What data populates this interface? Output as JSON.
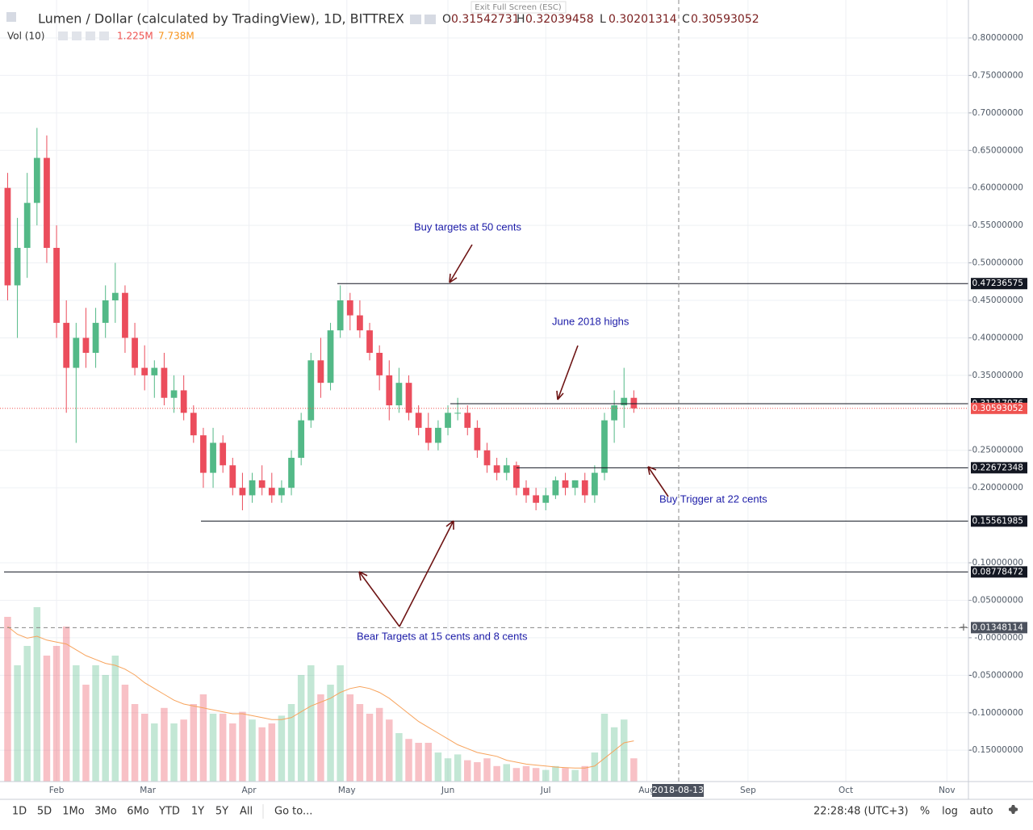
{
  "header": {
    "symbol": "Lumen / Dollar (calculated by TradingView), 1D, BITTREX",
    "ohlc": [
      {
        "label": "O",
        "value": 0.31542731
      },
      {
        "label": "H",
        "value": 0.32039458
      },
      {
        "label": "L",
        "value": 0.30201314
      },
      {
        "label": "C",
        "value": 0.30593052
      }
    ],
    "volume_label": "Vol (10)",
    "volume_values": [
      "1.225M",
      "7.738M"
    ],
    "exit_full_screen": "Exit Full Screen (ESC)"
  },
  "chart_data": {
    "type": "candlestick",
    "up_color": "#53b987",
    "down_color": "#eb4d5c",
    "open": [
      0.6,
      0.47,
      0.52,
      0.58,
      0.64,
      0.52,
      0.42,
      0.36,
      0.4,
      0.38,
      0.42,
      0.45,
      0.46,
      0.4,
      0.36,
      0.35,
      0.36,
      0.32,
      0.33,
      0.3,
      0.27,
      0.22,
      0.26,
      0.23,
      0.2,
      0.19,
      0.21,
      0.2,
      0.19,
      0.2,
      0.24,
      0.29,
      0.37,
      0.34,
      0.41,
      0.45,
      0.43,
      0.41,
      0.38,
      0.35,
      0.31,
      0.34,
      0.3,
      0.28,
      0.26,
      0.28,
      0.3,
      0.3,
      0.28,
      0.25,
      0.23,
      0.22,
      0.23,
      0.2,
      0.19,
      0.18,
      0.19,
      0.21,
      0.2,
      0.21,
      0.19,
      0.22,
      0.29,
      0.31,
      0.32
    ],
    "high": [
      0.62,
      0.56,
      0.62,
      0.68,
      0.67,
      0.55,
      0.45,
      0.42,
      0.44,
      0.44,
      0.47,
      0.5,
      0.47,
      0.42,
      0.39,
      0.37,
      0.38,
      0.35,
      0.35,
      0.31,
      0.28,
      0.28,
      0.27,
      0.24,
      0.22,
      0.22,
      0.23,
      0.22,
      0.21,
      0.25,
      0.3,
      0.38,
      0.4,
      0.42,
      0.47,
      0.46,
      0.45,
      0.42,
      0.39,
      0.37,
      0.36,
      0.35,
      0.31,
      0.3,
      0.29,
      0.31,
      0.32,
      0.31,
      0.29,
      0.26,
      0.24,
      0.24,
      0.235,
      0.21,
      0.2,
      0.2,
      0.215,
      0.22,
      0.21,
      0.22,
      0.23,
      0.3,
      0.33,
      0.36,
      0.33
    ],
    "low": [
      0.45,
      0.4,
      0.48,
      0.55,
      0.5,
      0.4,
      0.3,
      0.26,
      0.36,
      0.36,
      0.4,
      0.42,
      0.38,
      0.35,
      0.33,
      0.32,
      0.31,
      0.3,
      0.29,
      0.26,
      0.2,
      0.2,
      0.22,
      0.19,
      0.17,
      0.18,
      0.19,
      0.18,
      0.18,
      0.19,
      0.23,
      0.28,
      0.32,
      0.33,
      0.4,
      0.41,
      0.4,
      0.37,
      0.33,
      0.29,
      0.3,
      0.29,
      0.27,
      0.25,
      0.25,
      0.27,
      0.29,
      0.27,
      0.24,
      0.22,
      0.21,
      0.21,
      0.19,
      0.18,
      0.17,
      0.17,
      0.185,
      0.19,
      0.19,
      0.18,
      0.18,
      0.21,
      0.26,
      0.28,
      0.3
    ],
    "close": [
      0.47,
      0.52,
      0.58,
      0.64,
      0.52,
      0.42,
      0.36,
      0.4,
      0.38,
      0.42,
      0.45,
      0.46,
      0.4,
      0.36,
      0.35,
      0.36,
      0.32,
      0.33,
      0.3,
      0.27,
      0.22,
      0.26,
      0.23,
      0.2,
      0.19,
      0.21,
      0.2,
      0.19,
      0.2,
      0.24,
      0.29,
      0.37,
      0.34,
      0.41,
      0.45,
      0.43,
      0.41,
      0.38,
      0.35,
      0.31,
      0.34,
      0.3,
      0.28,
      0.26,
      0.28,
      0.3,
      0.3,
      0.28,
      0.25,
      0.23,
      0.22,
      0.23,
      0.2,
      0.19,
      0.18,
      0.19,
      0.21,
      0.2,
      0.21,
      0.19,
      0.22,
      0.29,
      0.31,
      0.32,
      0.306
    ],
    "volume": [
      8.5,
      6,
      7,
      9,
      6.5,
      7,
      8,
      6,
      5,
      6,
      5.5,
      6.5,
      5,
      4,
      3.5,
      3,
      3.8,
      3,
      3.2,
      4,
      4.5,
      3.5,
      3.5,
      3,
      3.6,
      3.2,
      2.8,
      3,
      3.4,
      4,
      5.5,
      6,
      4.5,
      5,
      6,
      4.5,
      4,
      3.5,
      3.8,
      3.2,
      2.5,
      2.2,
      2,
      2,
      1.5,
      1.2,
      1.4,
      1.1,
      1,
      1.2,
      0.8,
      0.9,
      0.7,
      0.8,
      0.7,
      0.6,
      0.8,
      0.7,
      0.6,
      0.8,
      1.5,
      3.5,
      2.8,
      3.2,
      1.2
    ],
    "volume_ma": [
      8,
      7.6,
      7.4,
      7.5,
      7.3,
      7.2,
      7.1,
      6.8,
      6.5,
      6.3,
      6.1,
      6,
      5.8,
      5.5,
      5.1,
      4.8,
      4.5,
      4.2,
      4,
      3.9,
      3.8,
      3.7,
      3.6,
      3.5,
      3.5,
      3.4,
      3.3,
      3.2,
      3.2,
      3.3,
      3.6,
      3.9,
      4.1,
      4.3,
      4.6,
      4.8,
      4.9,
      4.8,
      4.6,
      4.3,
      3.9,
      3.5,
      3.1,
      2.8,
      2.5,
      2.2,
      1.9,
      1.7,
      1.5,
      1.4,
      1.3,
      1.1,
      1,
      0.9,
      0.85,
      0.8,
      0.75,
      0.72,
      0.7,
      0.7,
      0.8,
      1.2,
      1.6,
      2,
      2.1
    ],
    "volume_ma_color": "#f7a35c",
    "xlim": [
      -0.78,
      98.2
    ],
    "xticks": [
      {
        "value": 5,
        "label": "Feb"
      },
      {
        "value": 14.33,
        "label": "Mar"
      },
      {
        "value": 24.67,
        "label": "Apr"
      },
      {
        "value": 34.67,
        "label": "May"
      },
      {
        "value": 45,
        "label": "Jun"
      },
      {
        "value": 55,
        "label": "Jul"
      },
      {
        "value": 65.33,
        "label": "Aug"
      },
      {
        "value": 75.67,
        "label": "Sep"
      },
      {
        "value": 85.67,
        "label": "Oct"
      },
      {
        "value": 96,
        "label": "Nov"
      }
    ],
    "ylim": [
      -0.1918,
      0.8506
    ],
    "yticks": [
      {
        "value": 0.8,
        "label": "0.80000000"
      },
      {
        "value": 0.75,
        "label": "0.75000000"
      },
      {
        "value": 0.7,
        "label": "0.70000000"
      },
      {
        "value": 0.65,
        "label": "0.65000000"
      },
      {
        "value": 0.6,
        "label": "0.60000000"
      },
      {
        "value": 0.55,
        "label": "0.55000000"
      },
      {
        "value": 0.5,
        "label": "0.50000000"
      },
      {
        "value": 0.45,
        "label": "0.45000000"
      },
      {
        "value": 0.4,
        "label": "0.40000000"
      },
      {
        "value": 0.35,
        "label": "0.35000000"
      },
      {
        "value": 0.25,
        "label": "0.25000000"
      },
      {
        "value": 0.2,
        "label": "0.20000000"
      },
      {
        "value": 0.1,
        "label": "0.10000000"
      },
      {
        "value": 0.05,
        "label": "0.05000000"
      },
      {
        "value": 0,
        "label": "-0.0000000"
      },
      {
        "value": -0.05,
        "label": "-0.05000000"
      },
      {
        "value": -0.1,
        "label": "-0.10000000"
      },
      {
        "value": -0.15,
        "label": "-0.15000000"
      }
    ],
    "grid": true,
    "levels": [
      {
        "value": 0.47236575,
        "color": "#131722"
      },
      {
        "value": 0.31217976,
        "color": "#131722"
      },
      {
        "value": 0.30593052,
        "color": "#ef5350"
      },
      {
        "value": 0.22672348,
        "color": "#131722"
      },
      {
        "value": 0.15561985,
        "color": "#131722"
      },
      {
        "value": 0.08778472,
        "color": "#131722"
      }
    ],
    "crosshair": {
      "value": 0.01348114,
      "date_label": "2018-08-13"
    },
    "annotations": [
      "Buy targets at 50 cents",
      "June 2018 highs",
      "Buy Trigger at 22 cents",
      "Bear Targets at 15 cents and 8 cents"
    ]
  },
  "toolbar": {
    "ranges": [
      "1D",
      "5D",
      "1Mo",
      "3Mo",
      "6Mo",
      "YTD",
      "1Y",
      "5Y",
      "All"
    ],
    "goto": "Go to...",
    "time": "22:28:48 (UTC+3)",
    "options": [
      "%",
      "log",
      "auto"
    ]
  }
}
